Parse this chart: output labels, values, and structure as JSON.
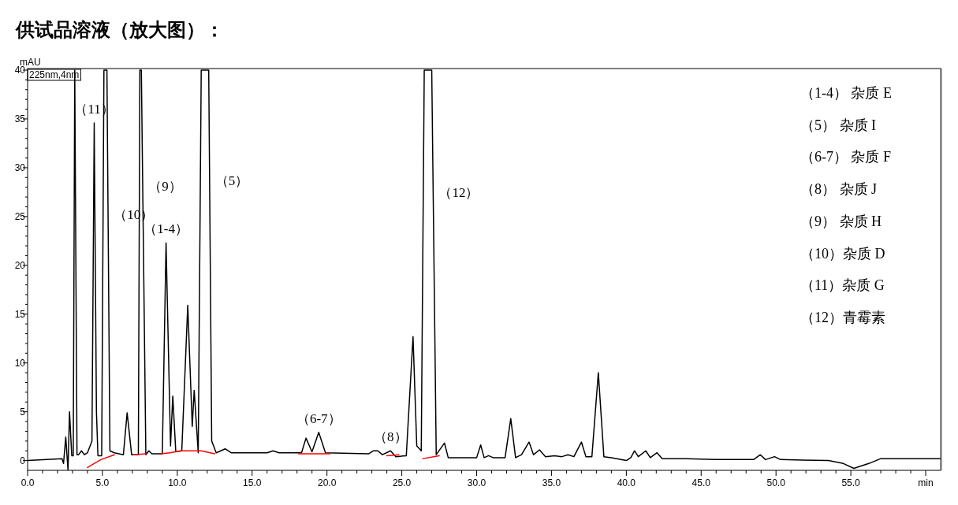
{
  "chart_data": {
    "type": "line",
    "title": "供试品溶液（放大图）：",
    "ylabel": "mAU",
    "xlim": [
      0,
      61
    ],
    "ylim": [
      -1,
      40
    ],
    "xticks": [
      {
        "value": 0,
        "label": "0.0"
      },
      {
        "value": 1,
        "label": null
      },
      {
        "value": 2,
        "label": null
      },
      {
        "value": 3,
        "label": null
      },
      {
        "value": 4,
        "label": null
      },
      {
        "value": 5,
        "label": "5.0"
      },
      {
        "value": 6,
        "label": null
      },
      {
        "value": 7,
        "label": null
      },
      {
        "value": 8,
        "label": null
      },
      {
        "value": 9,
        "label": null
      },
      {
        "value": 10,
        "label": "10.0"
      },
      {
        "value": 11,
        "label": null
      },
      {
        "value": 12,
        "label": null
      },
      {
        "value": 13,
        "label": null
      },
      {
        "value": 14,
        "label": null
      },
      {
        "value": 15,
        "label": "15.0"
      },
      {
        "value": 16,
        "label": null
      },
      {
        "value": 17,
        "label": null
      },
      {
        "value": 18,
        "label": null
      },
      {
        "value": 19,
        "label": null
      },
      {
        "value": 20,
        "label": "20.0"
      },
      {
        "value": 21,
        "label": null
      },
      {
        "value": 22,
        "label": null
      },
      {
        "value": 23,
        "label": null
      },
      {
        "value": 24,
        "label": null
      },
      {
        "value": 25,
        "label": "25.0"
      },
      {
        "value": 26,
        "label": null
      },
      {
        "value": 27,
        "label": null
      },
      {
        "value": 28,
        "label": null
      },
      {
        "value": 29,
        "label": null
      },
      {
        "value": 30,
        "label": "30.0"
      },
      {
        "value": 31,
        "label": null
      },
      {
        "value": 32,
        "label": null
      },
      {
        "value": 33,
        "label": null
      },
      {
        "value": 34,
        "label": null
      },
      {
        "value": 35,
        "label": "35.0"
      },
      {
        "value": 36,
        "label": null
      },
      {
        "value": 37,
        "label": null
      },
      {
        "value": 38,
        "label": null
      },
      {
        "value": 39,
        "label": null
      },
      {
        "value": 40,
        "label": "40.0"
      },
      {
        "value": 41,
        "label": null
      },
      {
        "value": 42,
        "label": null
      },
      {
        "value": 43,
        "label": null
      },
      {
        "value": 44,
        "label": null
      },
      {
        "value": 45,
        "label": "45.0"
      },
      {
        "value": 46,
        "label": null
      },
      {
        "value": 47,
        "label": null
      },
      {
        "value": 48,
        "label": null
      },
      {
        "value": 49,
        "label": null
      },
      {
        "value": 50,
        "label": "50.0"
      },
      {
        "value": 51,
        "label": null
      },
      {
        "value": 52,
        "label": null
      },
      {
        "value": 53,
        "label": null
      },
      {
        "value": 54,
        "label": null
      },
      {
        "value": 55,
        "label": "55.0"
      },
      {
        "value": 56,
        "label": null
      },
      {
        "value": 57,
        "label": null
      },
      {
        "value": 58,
        "label": null
      },
      {
        "value": 59,
        "label": null
      },
      {
        "value": 60,
        "label": "min"
      }
    ],
    "yticks": [
      0,
      {
        "value": 1,
        "label": null
      },
      {
        "value": 2,
        "label": null
      },
      {
        "value": 3,
        "label": null
      },
      {
        "value": 4,
        "label": null
      },
      5,
      {
        "value": 6,
        "label": null
      },
      {
        "value": 7,
        "label": null
      },
      {
        "value": 8,
        "label": null
      },
      {
        "value": 9,
        "label": null
      },
      10,
      {
        "value": 11,
        "label": null
      },
      {
        "value": 12,
        "label": null
      },
      {
        "value": 13,
        "label": null
      },
      {
        "value": 14,
        "label": null
      },
      15,
      {
        "value": 16,
        "label": null
      },
      {
        "value": 17,
        "label": null
      },
      {
        "value": 18,
        "label": null
      },
      {
        "value": 19,
        "label": null
      },
      20,
      {
        "value": 21,
        "label": null
      },
      {
        "value": 22,
        "label": null
      },
      {
        "value": 23,
        "label": null
      },
      {
        "value": 24,
        "label": null
      },
      25,
      {
        "value": 26,
        "label": null
      },
      {
        "value": 27,
        "label": null
      },
      {
        "value": 28,
        "label": null
      },
      {
        "value": 29,
        "label": null
      },
      30,
      {
        "value": 31,
        "label": null
      },
      {
        "value": 32,
        "label": null
      },
      {
        "value": 33,
        "label": null
      },
      {
        "value": 34,
        "label": null
      },
      35,
      {
        "value": 36,
        "label": null
      },
      {
        "value": 37,
        "label": null
      },
      {
        "value": 38,
        "label": null
      },
      {
        "value": 39,
        "label": null
      },
      40
    ],
    "grid": false,
    "line_style": "solid",
    "marker": "none",
    "series": [
      {
        "color": "#000000",
        "x": [
          0,
          2.3,
          2.4,
          2.55,
          2.7,
          2.8,
          2.95,
          3.05,
          3.15,
          3.3,
          3.4,
          3.6,
          3.8,
          4.0,
          4.3,
          4.45,
          4.6,
          4.7,
          4.95,
          5.1,
          5.3,
          5.5,
          5.8,
          6.4,
          6.65,
          6.95,
          7.4,
          7.5,
          7.6,
          7.9,
          8.1,
          8.3,
          9.0,
          9.25,
          9.55,
          9.7,
          9.9,
          10.3,
          10.7,
          11.0,
          11.13,
          11.4,
          11.6,
          11.75,
          12.1,
          12.3,
          12.6,
          13.2,
          13.6,
          16.0,
          16.4,
          16.8,
          18.3,
          18.6,
          19.0,
          19.45,
          19.9,
          22.8,
          23.1,
          23.4,
          23.7,
          24.25,
          24.6,
          25.3,
          25.75,
          26.0,
          26.3,
          26.5,
          27.0,
          27.3,
          27.85,
          28.1,
          30.0,
          30.27,
          30.5,
          30.8,
          31.1,
          31.9,
          32.28,
          32.6,
          33.0,
          33.5,
          33.8,
          34.2,
          34.6,
          35.2,
          35.7,
          36.1,
          36.5,
          37.0,
          37.3,
          37.7,
          38.13,
          38.5,
          39.0,
          40.0,
          40.3,
          40.55,
          40.8,
          41.3,
          41.6,
          42.05,
          42.4,
          44.0,
          46.0,
          48.5,
          48.95,
          49.3,
          49.9,
          50.3,
          53.5,
          54.5,
          55.2,
          56.2,
          57.0,
          61.0
        ],
        "values": [
          0,
          0.2,
          -0.3,
          2.4,
          -1.0,
          5.0,
          0.5,
          0.5,
          40,
          0.6,
          0.6,
          1.0,
          0.6,
          0.8,
          2.0,
          34.6,
          5.0,
          0.5,
          0.5,
          40,
          40,
          1.0,
          0.8,
          0.6,
          4.9,
          0.6,
          0.6,
          40,
          40,
          0.6,
          1.0,
          0.7,
          0.7,
          22.3,
          1.5,
          6.6,
          0.9,
          1.0,
          15.9,
          3.5,
          7.2,
          0.8,
          40,
          40,
          40,
          2.0,
          0.8,
          1.2,
          0.8,
          0.8,
          1.0,
          0.8,
          0.8,
          2.3,
          0.9,
          2.9,
          0.8,
          0.7,
          1.0,
          1.0,
          0.6,
          1.0,
          0.4,
          0.5,
          12.7,
          1.5,
          1.0,
          40,
          40,
          0.6,
          1.8,
          0.3,
          0.3,
          1.6,
          0.3,
          0.5,
          0.3,
          0.3,
          4.3,
          0.3,
          0.6,
          1.9,
          0.6,
          1.1,
          0.4,
          0.5,
          0.4,
          0.6,
          0.4,
          1.9,
          0.4,
          0.4,
          9.0,
          0.4,
          0.3,
          0.0,
          0.3,
          1.0,
          0.4,
          1.0,
          0.3,
          0.8,
          0.2,
          0.2,
          0.1,
          0.1,
          0.6,
          0.1,
          0.4,
          0.1,
          0.0,
          -0.3,
          -0.8,
          -0.3,
          0.2,
          0.2
        ]
      },
      {
        "color": "#ff0000",
        "x": [
          4.0,
          4.9,
          5.8,
          6.5,
          7.1,
          7.9,
          8.5,
          8.9,
          9.5,
          10.2,
          11.0,
          11.6,
          12.5,
          15,
          18.1,
          20.2,
          22,
          24.0,
          24.8,
          25.5,
          26.4,
          27.5
        ],
        "values": [
          -0.7,
          0.1,
          0.6,
          null,
          0.6,
          0.7,
          null,
          0.7,
          0.8,
          1.0,
          1.0,
          1.0,
          0.7,
          null,
          0.7,
          0.7,
          null,
          0.5,
          0.6,
          null,
          0.2,
          0.5
        ]
      }
    ],
    "annotations": [
      "225nm,4nm",
      {
        "text": "（11）",
        "x": 4.45,
        "y": 34.6
      },
      {
        "text": "（10）",
        "x": 5.38,
        "y": 25.2
      },
      {
        "text": "（9）",
        "x": 7.7,
        "y": 28.1
      },
      {
        "text": "（1-4）",
        "x": 9.25,
        "y": 22.3
      },
      {
        "text": "（5）",
        "x": 12.16,
        "y": 28.7
      },
      {
        "text": "（6-7）",
        "x": 19.45,
        "y": 2.9
      },
      {
        "text": "（8）",
        "x": 24.25,
        "y": 1.0
      },
      {
        "text": "（12）",
        "x": 27.1,
        "y": 27.5
      },
      "（1-4）  杂质 E",
      "（5）  杂质 I",
      "（6-7）  杂质 F",
      "（8）  杂质 J",
      "（9）  杂质 H",
      "（10）杂质 D",
      "（11）杂质 G",
      "（12）青霉素"
    ]
  }
}
